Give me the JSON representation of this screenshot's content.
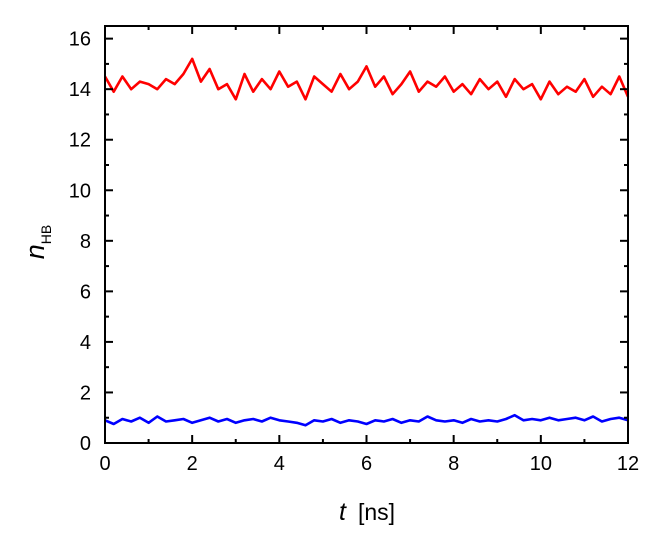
{
  "chart_data": {
    "type": "line",
    "xlabel": {
      "symbol": "t",
      "unit": "[ns]"
    },
    "ylabel": {
      "symbol": "n",
      "subscript": "HB"
    },
    "xlim": [
      0,
      12
    ],
    "ylim": [
      0,
      16.5
    ],
    "xticks": [
      "0",
      "2",
      "4",
      "6",
      "8",
      "10",
      "12"
    ],
    "yticks": [
      "0",
      "2",
      "4",
      "6",
      "8",
      "10",
      "12",
      "14",
      "16"
    ],
    "grid": false,
    "legend": "none",
    "series": [
      {
        "color": "#ff0000",
        "x": [
          0.0,
          0.2,
          0.4,
          0.6,
          0.8,
          1.0,
          1.2,
          1.4,
          1.6,
          1.8,
          2.0,
          2.2,
          2.4,
          2.6,
          2.8,
          3.0,
          3.2,
          3.4,
          3.6,
          3.8,
          4.0,
          4.2,
          4.4,
          4.6,
          4.8,
          5.0,
          5.2,
          5.4,
          5.6,
          5.8,
          6.0,
          6.2,
          6.4,
          6.6,
          6.8,
          7.0,
          7.2,
          7.4,
          7.6,
          7.8,
          8.0,
          8.2,
          8.4,
          8.6,
          8.8,
          9.0,
          9.2,
          9.4,
          9.6,
          9.8,
          10.0,
          10.2,
          10.4,
          10.6,
          10.8,
          11.0,
          11.2,
          11.4,
          11.6,
          11.8,
          12.0
        ],
        "y": [
          14.5,
          13.9,
          14.5,
          14.0,
          14.3,
          14.2,
          14.0,
          14.4,
          14.2,
          14.6,
          15.2,
          14.3,
          14.8,
          14.0,
          14.2,
          13.6,
          14.6,
          13.9,
          14.4,
          14.0,
          14.7,
          14.1,
          14.3,
          13.6,
          14.5,
          14.2,
          13.9,
          14.6,
          14.0,
          14.3,
          14.9,
          14.1,
          14.5,
          13.8,
          14.2,
          14.7,
          13.9,
          14.3,
          14.1,
          14.5,
          13.9,
          14.2,
          13.8,
          14.4,
          14.0,
          14.3,
          13.7,
          14.4,
          14.0,
          14.2,
          13.6,
          14.3,
          13.8,
          14.1,
          13.9,
          14.4,
          13.7,
          14.1,
          13.8,
          14.5,
          13.7
        ]
      },
      {
        "color": "#0000ff",
        "x": [
          0.0,
          0.2,
          0.4,
          0.6,
          0.8,
          1.0,
          1.2,
          1.4,
          1.6,
          1.8,
          2.0,
          2.2,
          2.4,
          2.6,
          2.8,
          3.0,
          3.2,
          3.4,
          3.6,
          3.8,
          4.0,
          4.2,
          4.4,
          4.6,
          4.8,
          5.0,
          5.2,
          5.4,
          5.6,
          5.8,
          6.0,
          6.2,
          6.4,
          6.6,
          6.8,
          7.0,
          7.2,
          7.4,
          7.6,
          7.8,
          8.0,
          8.2,
          8.4,
          8.6,
          8.8,
          9.0,
          9.2,
          9.4,
          9.6,
          9.8,
          10.0,
          10.2,
          10.4,
          10.6,
          10.8,
          11.0,
          11.2,
          11.4,
          11.6,
          11.8,
          12.0
        ],
        "y": [
          0.9,
          0.75,
          0.95,
          0.85,
          1.0,
          0.8,
          1.05,
          0.85,
          0.9,
          0.95,
          0.8,
          0.9,
          1.0,
          0.85,
          0.95,
          0.8,
          0.9,
          0.95,
          0.85,
          1.0,
          0.9,
          0.85,
          0.8,
          0.7,
          0.9,
          0.85,
          0.95,
          0.8,
          0.9,
          0.85,
          0.75,
          0.9,
          0.85,
          0.95,
          0.8,
          0.9,
          0.85,
          1.05,
          0.9,
          0.85,
          0.9,
          0.8,
          0.95,
          0.85,
          0.9,
          0.85,
          0.95,
          1.1,
          0.9,
          0.95,
          0.9,
          1.0,
          0.9,
          0.95,
          1.0,
          0.9,
          1.05,
          0.85,
          0.95,
          1.0,
          0.9
        ]
      }
    ]
  }
}
